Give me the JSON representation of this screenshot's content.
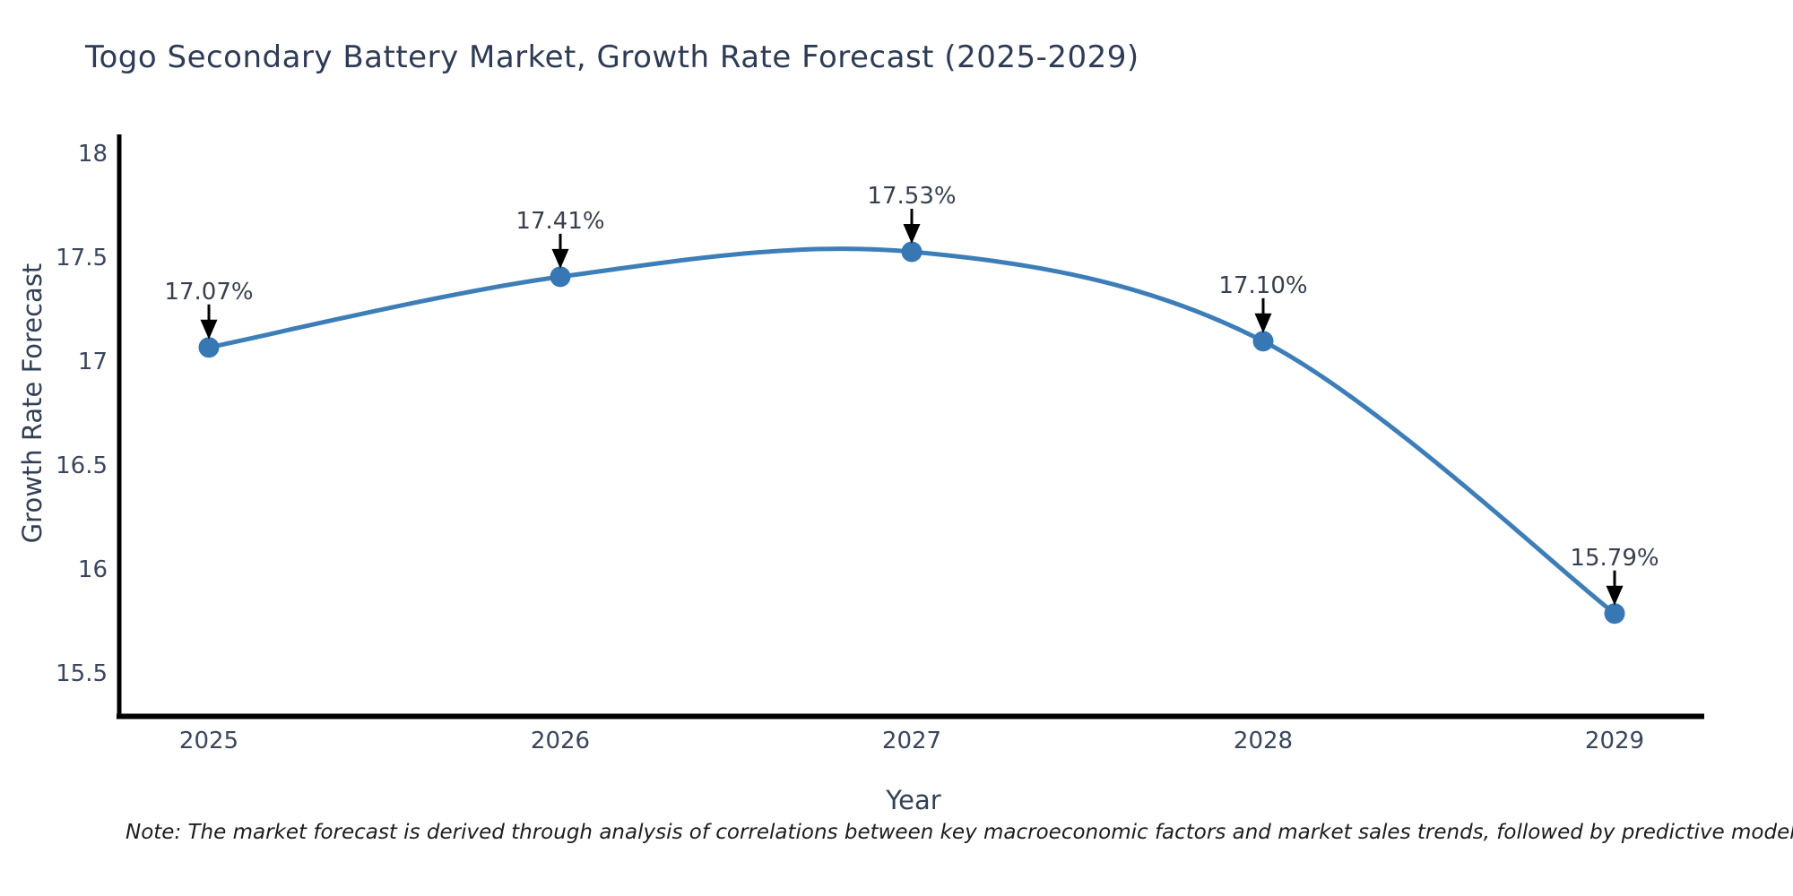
{
  "title": "Togo Secondary Battery Market, Growth Rate Forecast (2025-2029)",
  "footnote": "Note: The market forecast is derived through analysis of correlations between key macroeconomic factors and market sales trends, followed by predictive modeling to project future sal",
  "chart_data": {
    "type": "line",
    "title": "Togo Secondary Battery Market, Growth Rate Forecast (2025-2029)",
    "xlabel": "Year",
    "ylabel": "Growth Rate Forecast",
    "categories": [
      "2025",
      "2026",
      "2027",
      "2028",
      "2029"
    ],
    "series": [
      {
        "name": "Growth Rate Forecast",
        "values": [
          17.07,
          17.41,
          17.53,
          17.1,
          15.79
        ],
        "point_labels": [
          "17.07%",
          "17.41%",
          "17.53%",
          "17.10%",
          "15.79%"
        ]
      }
    ],
    "yticks": [
      15.5,
      16,
      16.5,
      17,
      17.5,
      18
    ],
    "ytick_labels": [
      "15.5",
      "16",
      "16.5",
      "17",
      "17.5",
      "18"
    ],
    "ylim": [
      15.3,
      18.1
    ],
    "grid": false,
    "legend": "none",
    "line_color": "#3d7eb8",
    "marker_color": "#3777b3",
    "axis_color": "#000000",
    "annotation_arrow_color": "#000000"
  }
}
